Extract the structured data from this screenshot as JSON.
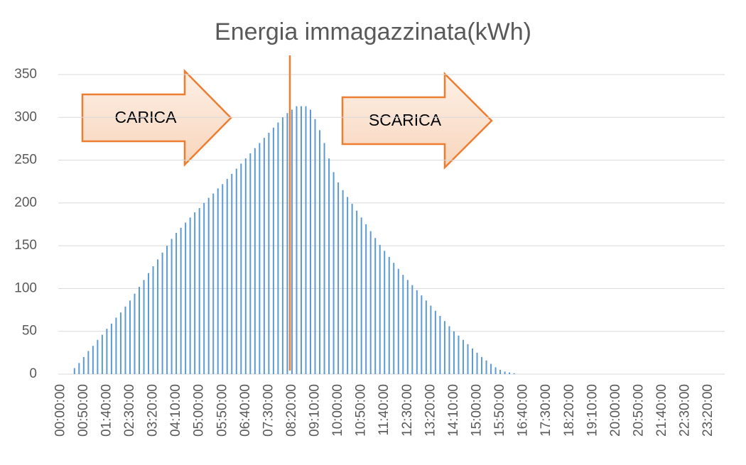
{
  "chart_data": {
    "type": "bar",
    "title": "Energia immagazzinata(kWh)",
    "annotations": [
      "CARICA",
      "SCARICA"
    ],
    "categories": [
      "00:00:00",
      null,
      null,
      null,
      null,
      "00:50:00",
      null,
      null,
      null,
      null,
      "01:40:00",
      null,
      null,
      null,
      null,
      "02:30:00",
      null,
      null,
      null,
      null,
      "03:20:00",
      null,
      null,
      null,
      null,
      "04:10:00",
      null,
      null,
      null,
      null,
      "05:00:00",
      null,
      null,
      null,
      null,
      "05:50:00",
      null,
      null,
      null,
      null,
      "06:40:00",
      null,
      null,
      null,
      null,
      "07:30:00",
      null,
      null,
      null,
      null,
      "08:20:00",
      null,
      null,
      null,
      null,
      "09:10:00",
      null,
      null,
      null,
      null,
      "10:00:00",
      null,
      null,
      null,
      null,
      "10:50:00",
      null,
      null,
      null,
      null,
      "11:40:00",
      null,
      null,
      null,
      null,
      "12:30:00",
      null,
      null,
      null,
      null,
      "13:20:00",
      null,
      null,
      null,
      null,
      "14:10:00",
      null,
      null,
      null,
      null,
      "15:00:00",
      null,
      null,
      null,
      null,
      "15:50:00",
      null,
      null,
      null,
      null,
      "16:40:00",
      null,
      null,
      null,
      null,
      "17:30:00",
      null,
      null,
      null,
      null,
      "18:20:00",
      null,
      null,
      null,
      null,
      "19:10:00",
      null,
      null,
      null,
      null,
      "20:00:00",
      null,
      null,
      null,
      null,
      "20:50:00",
      null,
      null,
      null,
      null,
      "21:40:00",
      null,
      null,
      null,
      null,
      "22:30:00",
      null,
      null,
      null,
      null,
      "23:20:00",
      null,
      null,
      null
    ],
    "values": [
      0,
      0,
      0,
      7,
      13,
      20,
      27,
      33,
      40,
      46,
      53,
      59,
      66,
      72,
      79,
      86,
      94,
      102,
      110,
      118,
      126,
      134,
      142,
      150,
      158,
      165,
      171,
      177,
      183,
      189,
      194,
      200,
      206,
      211,
      217,
      222,
      228,
      234,
      240,
      246,
      252,
      258,
      264,
      270,
      276,
      282,
      288,
      294,
      300,
      305,
      309,
      313,
      313,
      313,
      309,
      298,
      285,
      270,
      252,
      236,
      224,
      215,
      207,
      199,
      191,
      183,
      175,
      167,
      159,
      151,
      144,
      137,
      130,
      123,
      116,
      110,
      104,
      98,
      92,
      86,
      80,
      74,
      68,
      62,
      56,
      50,
      45,
      40,
      35,
      30,
      25,
      20,
      16,
      12,
      8,
      5,
      3,
      2,
      1,
      0,
      0,
      0,
      0,
      0,
      0,
      0,
      0,
      0,
      0,
      0,
      0,
      0,
      0,
      0,
      0,
      0,
      0,
      0,
      0,
      0,
      0,
      0,
      0,
      0,
      0,
      0,
      0,
      0,
      0,
      0,
      0,
      0,
      0,
      0,
      0,
      0,
      0,
      0,
      0,
      0,
      0,
      0,
      0,
      0
    ],
    "color": "#5b9bd5",
    "ylim": [
      0,
      350
    ],
    "yticks": [
      0,
      50,
      100,
      150,
      200,
      250,
      300,
      350
    ],
    "grid": true
  }
}
